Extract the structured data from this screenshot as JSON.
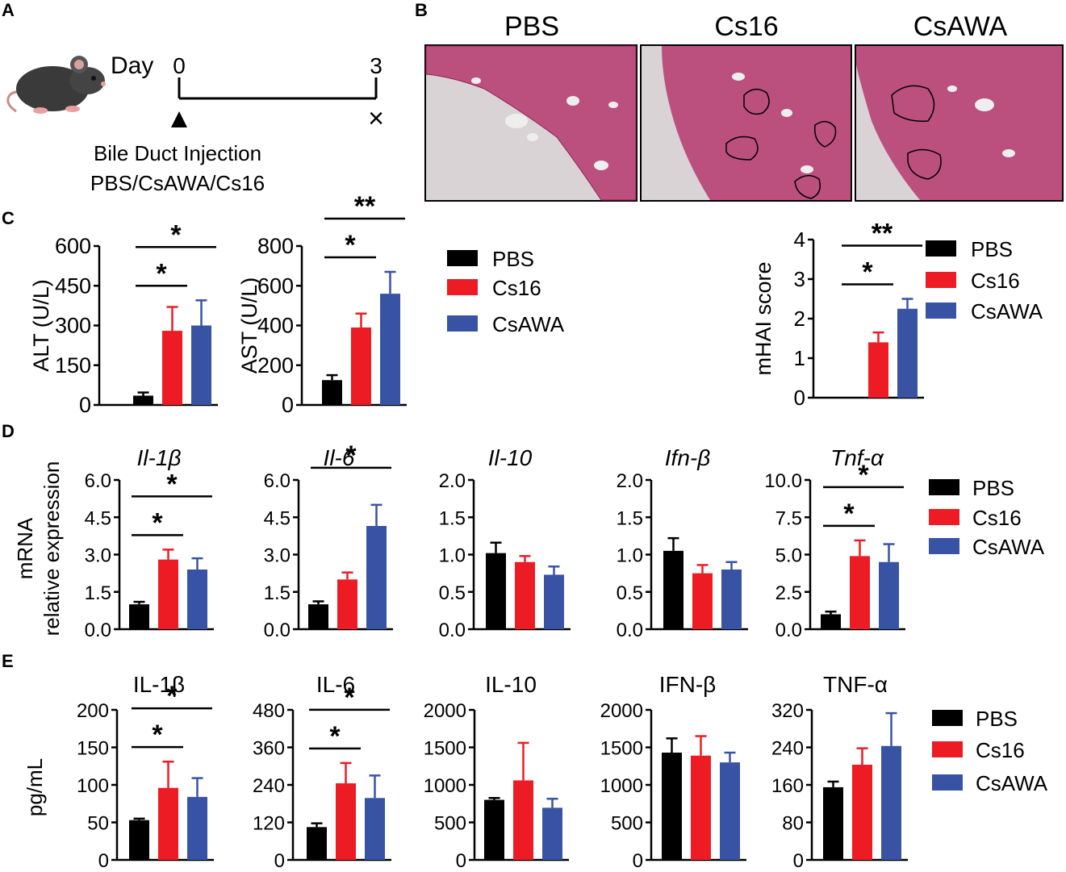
{
  "colors": {
    "PBS": "#000000",
    "Cs16": "#ed1c24",
    "CsAWA": "#3953a4"
  },
  "panel_A": {
    "letter": "A",
    "day_label": "Day",
    "day_start": "0",
    "day_end": "3",
    "injection_title": "Bile Duct Injection",
    "injection_groups": "PBS/CsAWA/Cs16",
    "end_marker": "×"
  },
  "panel_B": {
    "letter": "B",
    "image_titles": [
      "PBS",
      "Cs16",
      "CsAWA"
    ]
  },
  "panel_letters": {
    "C": "C",
    "D": "D",
    "E": "E"
  },
  "legend_labels": [
    "PBS",
    "Cs16",
    "CsAWA"
  ],
  "shared_labels": {
    "panel_D_ylabel_line1": "mRNA",
    "panel_D_ylabel_line2": "relative expression",
    "panel_E_ylabel": "pg/mL"
  },
  "chart_data": [
    {
      "id": "alt",
      "type": "bar",
      "title": "",
      "title_italic": false,
      "categories": [
        "PBS",
        "Cs16",
        "CsAWA"
      ],
      "values": [
        35,
        280,
        300
      ],
      "errors": [
        12,
        90,
        95
      ],
      "ylabel": "ALT (U/L)",
      "ylim": [
        0,
        600
      ],
      "ticks": [
        "0",
        "150",
        "300",
        "450",
        "600"
      ],
      "significance": [
        {
          "from": 0,
          "to": 1,
          "label": "*"
        },
        {
          "from": 0,
          "to": 2,
          "label": "*"
        }
      ]
    },
    {
      "id": "ast",
      "type": "bar",
      "title": "",
      "title_italic": false,
      "categories": [
        "PBS",
        "Cs16",
        "CsAWA"
      ],
      "values": [
        125,
        390,
        560
      ],
      "errors": [
        25,
        70,
        110
      ],
      "ylabel": "AST (U/L)",
      "ylim": [
        0,
        800
      ],
      "ticks": [
        "0",
        "200",
        "400",
        "600",
        "800"
      ],
      "significance": [
        {
          "from": 0,
          "to": 1,
          "label": "*"
        },
        {
          "from": 0,
          "to": 2,
          "label": "**"
        }
      ]
    },
    {
      "id": "mhai",
      "type": "bar",
      "title": "",
      "title_italic": false,
      "categories": [
        "PBS",
        "Cs16",
        "CsAWA"
      ],
      "values": [
        0,
        1.4,
        2.25
      ],
      "errors": [
        0,
        0.25,
        0.25
      ],
      "ylabel": "mHAI score",
      "ylim": [
        0,
        4
      ],
      "ticks": [
        "0",
        "1",
        "2",
        "3",
        "4"
      ],
      "significance": [
        {
          "from": 0,
          "to": 1,
          "label": "*"
        },
        {
          "from": 0,
          "to": 2,
          "label": "**"
        }
      ]
    },
    {
      "id": "il1b_mrna",
      "type": "bar",
      "title": "Il-1β",
      "title_italic": true,
      "categories": [
        "PBS",
        "Cs16",
        "CsAWA"
      ],
      "values": [
        1.0,
        2.8,
        2.4
      ],
      "errors": [
        0.1,
        0.4,
        0.45
      ],
      "ylabel": "",
      "ylim": [
        0,
        6
      ],
      "ticks": [
        "0.0",
        "1.5",
        "3.0",
        "4.5",
        "6.0"
      ],
      "significance": [
        {
          "from": 0,
          "to": 1,
          "label": "*"
        },
        {
          "from": 0,
          "to": 2,
          "label": "*"
        }
      ]
    },
    {
      "id": "il6_mrna",
      "type": "bar",
      "title": "Il-6",
      "title_italic": true,
      "categories": [
        "PBS",
        "Cs16",
        "CsAWA"
      ],
      "values": [
        1.0,
        2.0,
        4.15
      ],
      "errors": [
        0.12,
        0.28,
        0.85
      ],
      "ylabel": "",
      "ylim": [
        0,
        6
      ],
      "ticks": [
        "0.0",
        "1.5",
        "3.0",
        "4.5",
        "6.0"
      ],
      "significance": [
        {
          "from": 0,
          "to": 2,
          "label": "*"
        }
      ]
    },
    {
      "id": "il10_mrna",
      "type": "bar",
      "title": "Il-10",
      "title_italic": true,
      "categories": [
        "PBS",
        "Cs16",
        "CsAWA"
      ],
      "values": [
        1.02,
        0.9,
        0.73
      ],
      "errors": [
        0.14,
        0.08,
        0.11
      ],
      "ylabel": "",
      "ylim": [
        0,
        2
      ],
      "ticks": [
        "0.0",
        "0.5",
        "1.0",
        "1.5",
        "2.0"
      ],
      "significance": []
    },
    {
      "id": "ifnb_mrna",
      "type": "bar",
      "title": "Ifn-β",
      "title_italic": true,
      "categories": [
        "PBS",
        "Cs16",
        "CsAWA"
      ],
      "values": [
        1.05,
        0.75,
        0.8
      ],
      "errors": [
        0.17,
        0.11,
        0.1
      ],
      "ylabel": "",
      "ylim": [
        0,
        2
      ],
      "ticks": [
        "0.0",
        "0.5",
        "1.0",
        "1.5",
        "2.0"
      ],
      "significance": []
    },
    {
      "id": "tnfa_mrna",
      "type": "bar",
      "title": "Tnf-α",
      "title_italic": true,
      "categories": [
        "PBS",
        "Cs16",
        "CsAWA"
      ],
      "values": [
        1.0,
        4.9,
        4.5
      ],
      "errors": [
        0.18,
        1.05,
        1.2
      ],
      "ylabel": "",
      "ylim": [
        0,
        10
      ],
      "ticks": [
        "0.0",
        "2.5",
        "5.0",
        "7.5",
        "10.0"
      ],
      "significance": [
        {
          "from": 0,
          "to": 1,
          "label": "*"
        },
        {
          "from": 0,
          "to": 2,
          "label": "*"
        }
      ]
    },
    {
      "id": "il1b_protein",
      "type": "bar",
      "title": "IL-1β",
      "title_italic": false,
      "categories": [
        "PBS",
        "Cs16",
        "CsAWA"
      ],
      "values": [
        53,
        96,
        84
      ],
      "errors": [
        2,
        35,
        25
      ],
      "ylabel": "",
      "ylim": [
        0,
        200
      ],
      "ticks": [
        "0",
        "50",
        "100",
        "150",
        "200"
      ],
      "significance": [
        {
          "from": 0,
          "to": 1,
          "label": "*"
        },
        {
          "from": 0,
          "to": 2,
          "label": "*"
        }
      ]
    },
    {
      "id": "il6_protein",
      "type": "bar",
      "title": "IL-6",
      "title_italic": false,
      "categories": [
        "PBS",
        "Cs16",
        "CsAWA"
      ],
      "values": [
        105,
        245,
        198
      ],
      "errors": [
        12,
        65,
        72
      ],
      "ylabel": "",
      "ylim": [
        0,
        480
      ],
      "ticks": [
        "0",
        "120",
        "240",
        "360",
        "480"
      ],
      "significance": [
        {
          "from": 0,
          "to": 1,
          "label": "*"
        },
        {
          "from": 0,
          "to": 2,
          "label": "*"
        }
      ]
    },
    {
      "id": "il10_protein",
      "type": "bar",
      "title": "IL-10",
      "title_italic": false,
      "categories": [
        "PBS",
        "Cs16",
        "CsAWA"
      ],
      "values": [
        800,
        1060,
        695
      ],
      "errors": [
        25,
        500,
        120
      ],
      "ylabel": "",
      "ylim": [
        0,
        2000
      ],
      "ticks": [
        "0",
        "500",
        "1000",
        "1500",
        "2000"
      ],
      "significance": []
    },
    {
      "id": "ifnb_protein",
      "type": "bar",
      "title": "IFN-β",
      "title_italic": false,
      "categories": [
        "PBS",
        "Cs16",
        "CsAWA"
      ],
      "values": [
        1430,
        1390,
        1300
      ],
      "errors": [
        190,
        260,
        130
      ],
      "ylabel": "",
      "ylim": [
        0,
        2000
      ],
      "ticks": [
        "0",
        "500",
        "1000",
        "1500",
        "2000"
      ],
      "significance": []
    },
    {
      "id": "tnfa_protein",
      "type": "bar",
      "title": "TNF-α",
      "title_italic": false,
      "categories": [
        "PBS",
        "Cs16",
        "CsAWA"
      ],
      "values": [
        155,
        203,
        243
      ],
      "errors": [
        12,
        35,
        70
      ],
      "ylabel": "",
      "ylim": [
        0,
        320
      ],
      "ticks": [
        "0",
        "80",
        "160",
        "240",
        "320"
      ],
      "significance": []
    }
  ]
}
